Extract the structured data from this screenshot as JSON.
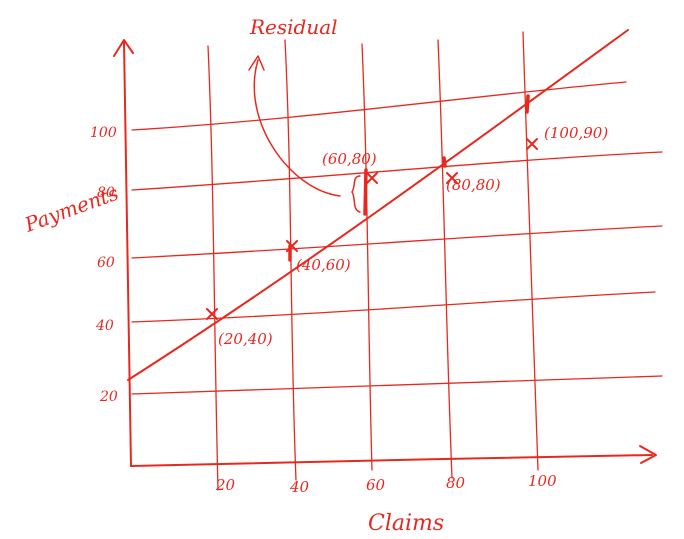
{
  "chart_data": {
    "type": "scatter",
    "xlabel": "Claims",
    "ylabel": "Payments",
    "x_ticks": [
      "20",
      "40",
      "60",
      "80",
      "100"
    ],
    "y_ticks": [
      "20",
      "40",
      "60",
      "80",
      "100"
    ],
    "points": [
      {
        "x": 20,
        "y": 40,
        "label": "(20,40)"
      },
      {
        "x": 40,
        "y": 60,
        "label": "(40,60)"
      },
      {
        "x": 60,
        "y": 80,
        "label": "(60,80)"
      },
      {
        "x": 80,
        "y": 80,
        "label": "(80,80)"
      },
      {
        "x": 100,
        "y": 90,
        "label": "(100,90)"
      }
    ],
    "fit_line": {
      "intercept": 20,
      "slope": 1
    },
    "residual_annotation": "Residual",
    "grid": true
  },
  "colors": {
    "ink": "#e8281f"
  }
}
